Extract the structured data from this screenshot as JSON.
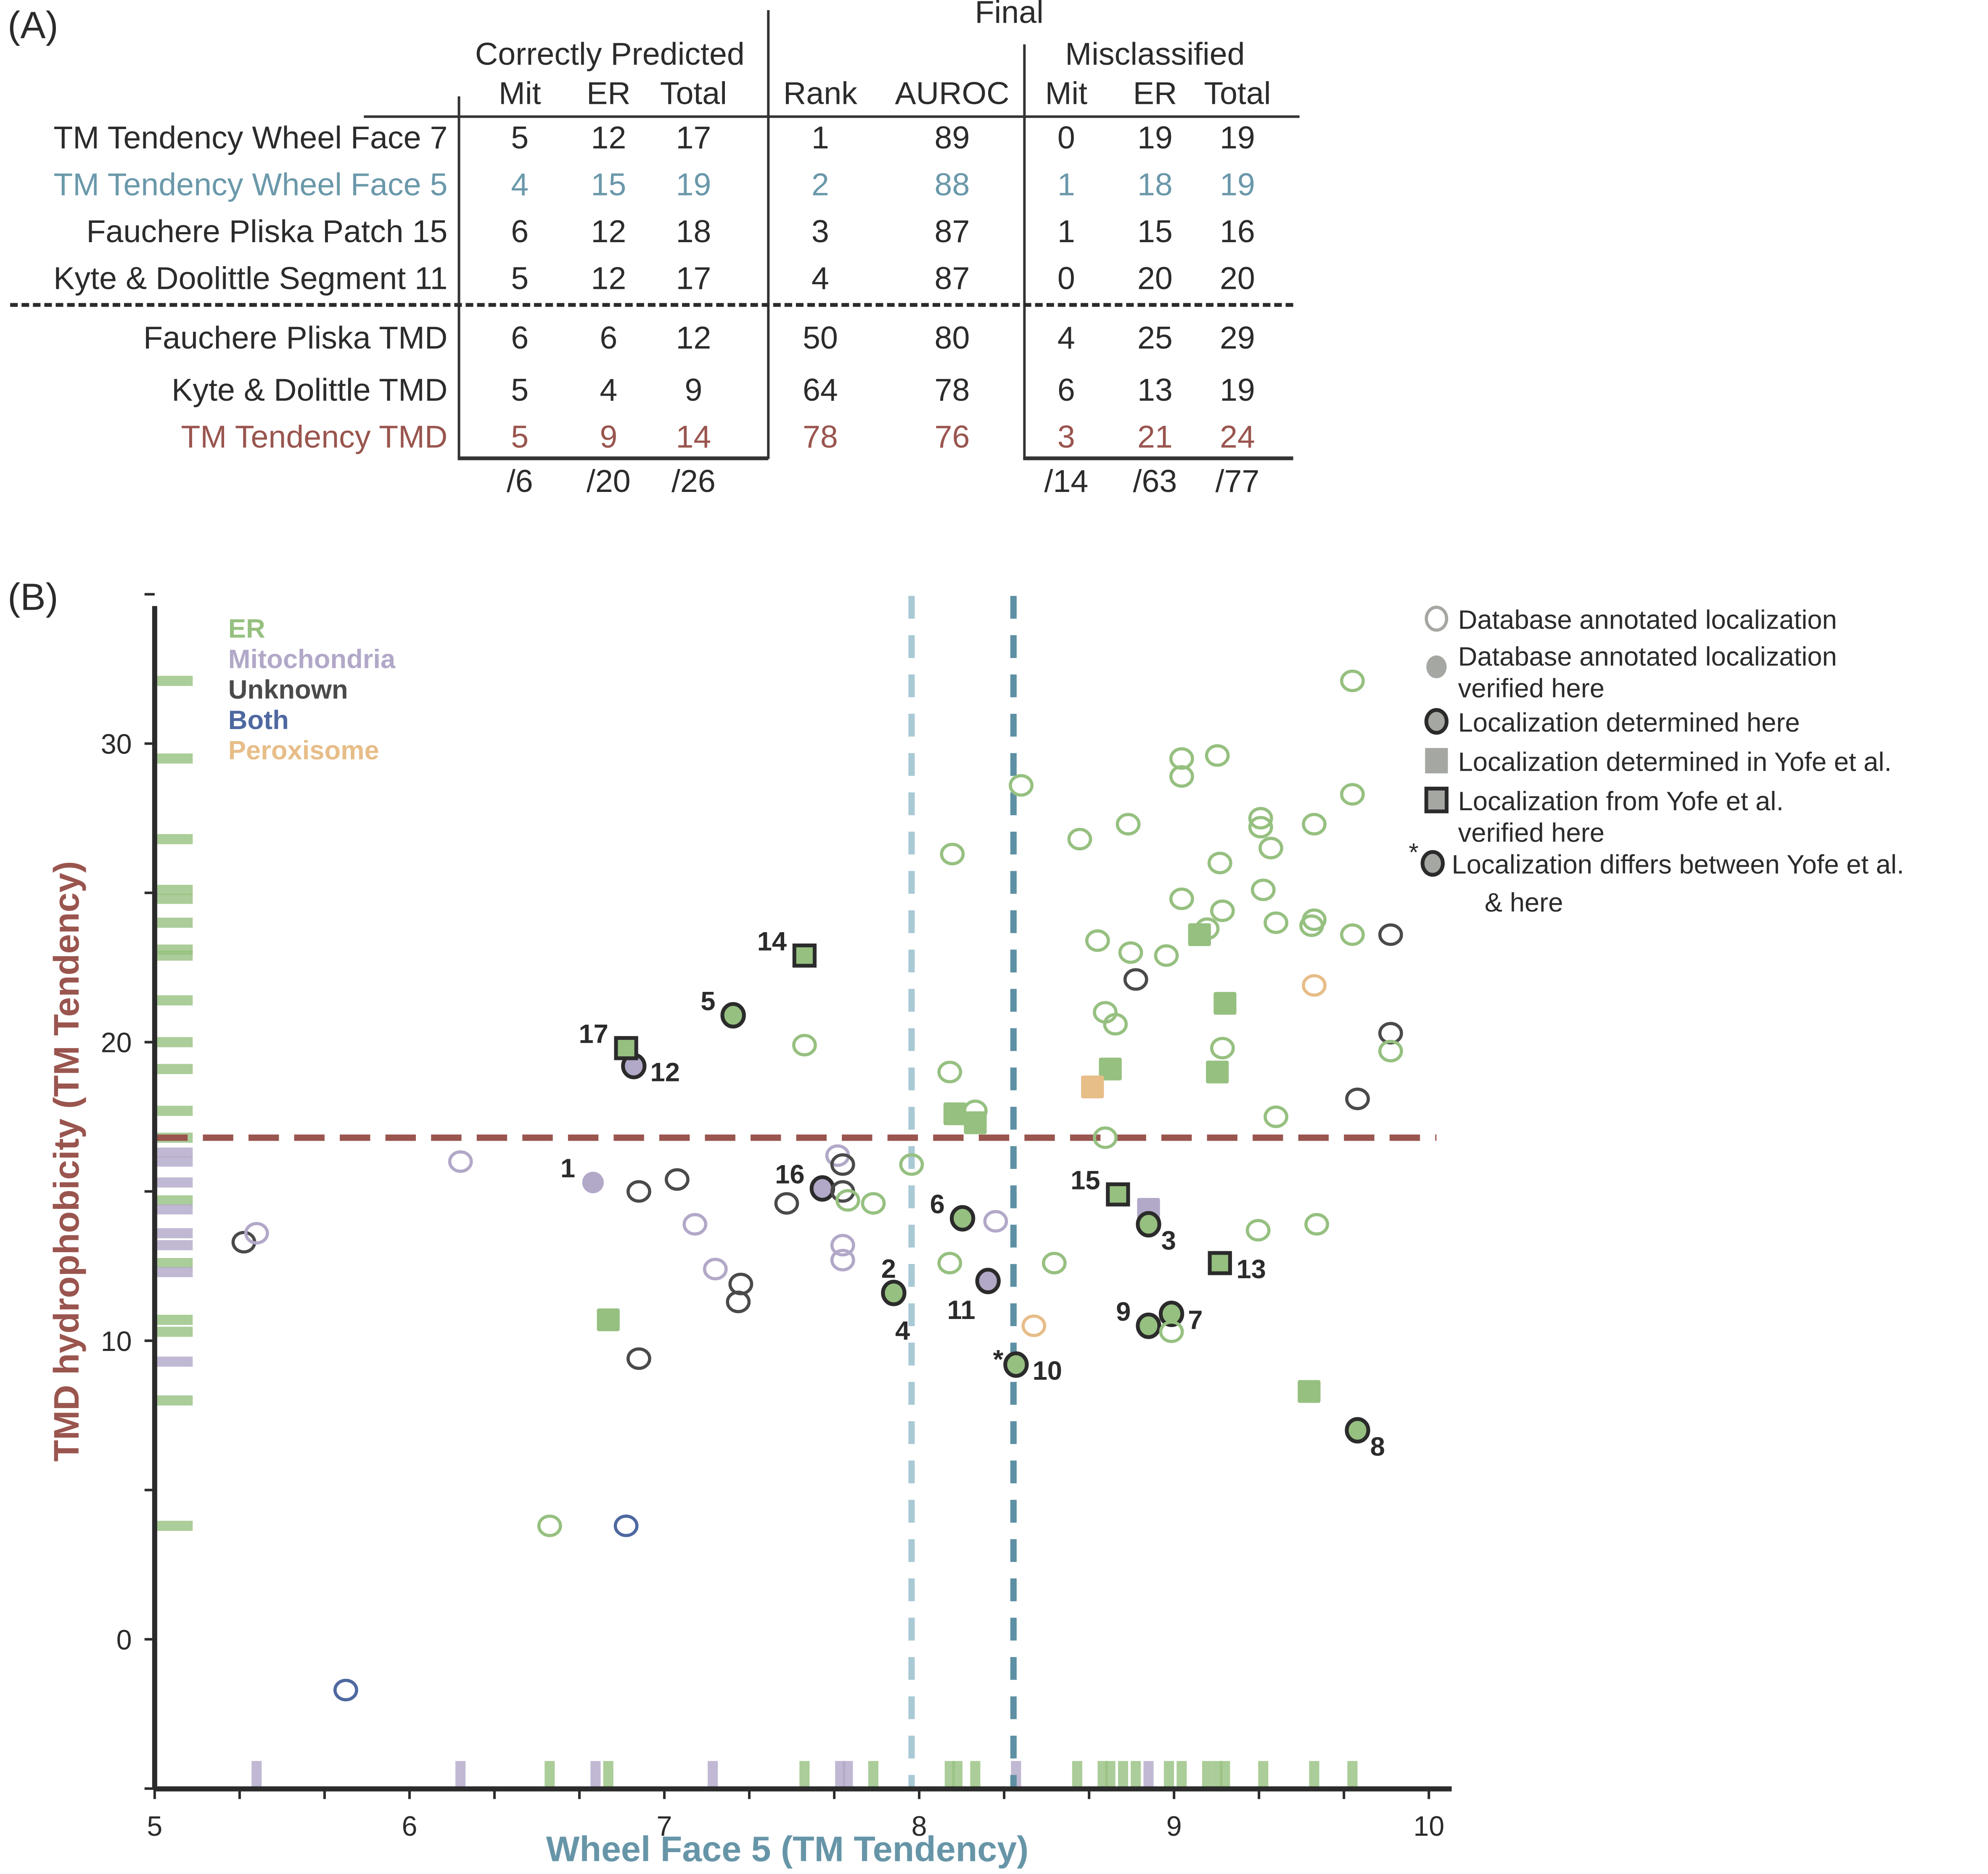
{
  "panel_a": {
    "label": "(A)",
    "group_headers": {
      "correct": "Correctly Predicted",
      "final": "Final",
      "misclassified": "Misclassified"
    },
    "columns": [
      "Mit",
      "ER",
      "Total",
      "Rank",
      "AUROC",
      "Mit",
      "ER",
      "Total"
    ],
    "rows": [
      {
        "name": "TM Tendency Wheel Face 7",
        "color": "#2b2b2b",
        "values": [
          "5",
          "12",
          "17",
          "1",
          "89",
          "0",
          "19",
          "19"
        ]
      },
      {
        "name": "TM Tendency Wheel Face 5",
        "color": "#6a98aa",
        "values": [
          "4",
          "15",
          "19",
          "2",
          "88",
          "1",
          "18",
          "19"
        ]
      },
      {
        "name": "Fauchere Pliska Patch 15",
        "color": "#2b2b2b",
        "values": [
          "6",
          "12",
          "18",
          "3",
          "87",
          "1",
          "15",
          "16"
        ]
      },
      {
        "name": "Kyte & Doolittle Segment 11",
        "color": "#2b2b2b",
        "values": [
          "5",
          "12",
          "17",
          "4",
          "87",
          "0",
          "20",
          "20"
        ]
      },
      {
        "name": "Fauchere Pliska TMD",
        "color": "#2b2b2b",
        "values": [
          "6",
          "6",
          "12",
          "50",
          "80",
          "4",
          "25",
          "29"
        ]
      },
      {
        "name": "Kyte & Dolittle TMD",
        "color": "#2b2b2b",
        "values": [
          "5",
          "4",
          "9",
          "64",
          "78",
          "6",
          "13",
          "19"
        ]
      },
      {
        "name": "TM Tendency TMD",
        "color": "#99554e",
        "values": [
          "5",
          "9",
          "14",
          "78",
          "76",
          "3",
          "21",
          "24"
        ]
      }
    ],
    "totals": {
      "correct": [
        "/6",
        "/20",
        "/26"
      ],
      "misclassified": [
        "/14",
        "/63",
        "/77"
      ]
    }
  },
  "chart_data": {
    "type": "scatter",
    "panel_label": "(B)",
    "title": "",
    "xlabel": "Wheel Face 5 (TM Tendency)",
    "ylabel": "TMD hydrophobicity (TM Tendency)",
    "xlim": [
      5,
      10.1
    ],
    "ylim": [
      -5,
      36
    ],
    "xticks": [
      5,
      6,
      7,
      8,
      9,
      10
    ],
    "yticks": [
      0,
      10,
      20,
      30
    ],
    "grid": false,
    "colors": {
      "ER": "#96c080",
      "Mitochondria": "#b2a8c8",
      "Unknown": "#4a4a4a",
      "Both": "#4e68a0",
      "Peroxisome": "#e7bd88",
      "xlabel": "#6795a8",
      "ylabel": "#99554e",
      "threshold_wf5_light": "#a9c9d4",
      "threshold_wf5_dark": "#5e90a3",
      "threshold_tmd": "#99554e"
    },
    "class_legend": [
      "ER",
      "Mitochondria",
      "Unknown",
      "Both",
      "Peroxisome"
    ],
    "marker_legend": [
      {
        "marker": "open-circle",
        "label": "Database annotated localization"
      },
      {
        "marker": "filled-circle",
        "label": "Database annotated localization verified here"
      },
      {
        "marker": "outlined-filled-circle",
        "label": "Localization determined here"
      },
      {
        "marker": "filled-square",
        "label": "Localization determined in Yofe et al."
      },
      {
        "marker": "outlined-filled-square",
        "label": "Localization from Yofe et al. verified here"
      },
      {
        "marker": "asterisk-outlined-circle",
        "label": "Localization differs between Yofe et al. & here"
      }
    ],
    "thresholds": {
      "x_light": 7.97,
      "x_dark": 8.37,
      "y": 16.8
    },
    "points": [
      {
        "x": 5.35,
        "y": 13.3,
        "cls": "Unknown",
        "m": "open"
      },
      {
        "x": 5.4,
        "y": 13.6,
        "cls": "Mitochondria",
        "m": "open"
      },
      {
        "x": 6.2,
        "y": 16.0,
        "cls": "Mitochondria",
        "m": "open"
      },
      {
        "x": 5.75,
        "y": -1.7,
        "cls": "Both",
        "m": "open"
      },
      {
        "x": 6.55,
        "y": 3.8,
        "cls": "ER",
        "m": "open"
      },
      {
        "x": 6.85,
        "y": 3.8,
        "cls": "Both",
        "m": "open"
      },
      {
        "x": 6.72,
        "y": 15.3,
        "cls": "Mitochondria",
        "m": "filled",
        "label": "1",
        "lpos": "left"
      },
      {
        "x": 6.9,
        "y": 15.0,
        "cls": "Unknown",
        "m": "open"
      },
      {
        "x": 7.05,
        "y": 15.4,
        "cls": "Unknown",
        "m": "open"
      },
      {
        "x": 7.12,
        "y": 13.9,
        "cls": "Mitochondria",
        "m": "open"
      },
      {
        "x": 7.2,
        "y": 12.4,
        "cls": "Mitochondria",
        "m": "open"
      },
      {
        "x": 7.3,
        "y": 11.9,
        "cls": "Unknown",
        "m": "open"
      },
      {
        "x": 7.29,
        "y": 11.3,
        "cls": "Unknown",
        "m": "open"
      },
      {
        "x": 6.78,
        "y": 10.7,
        "cls": "ER",
        "m": "square"
      },
      {
        "x": 6.9,
        "y": 9.4,
        "cls": "Unknown",
        "m": "open"
      },
      {
        "x": 6.88,
        "y": 19.2,
        "cls": "Mitochondria",
        "m": "determined",
        "label": "12",
        "lpos": "right"
      },
      {
        "x": 6.85,
        "y": 19.8,
        "cls": "ER",
        "m": "square-verified",
        "label": "17",
        "lpos": "left"
      },
      {
        "x": 7.27,
        "y": 20.9,
        "cls": "ER",
        "m": "determined",
        "label": "5",
        "lpos": "left"
      },
      {
        "x": 7.55,
        "y": 22.9,
        "cls": "ER",
        "m": "square-verified",
        "label": "14",
        "lpos": "left"
      },
      {
        "x": 7.55,
        "y": 19.9,
        "cls": "ER",
        "m": "open"
      },
      {
        "x": 7.48,
        "y": 14.6,
        "cls": "Unknown",
        "m": "open"
      },
      {
        "x": 7.62,
        "y": 15.1,
        "cls": "Mitochondria",
        "m": "determined",
        "label": "16",
        "lpos": "left"
      },
      {
        "x": 7.68,
        "y": 16.2,
        "cls": "Mitochondria",
        "m": "open"
      },
      {
        "x": 7.7,
        "y": 15.9,
        "cls": "Unknown",
        "m": "open"
      },
      {
        "x": 7.7,
        "y": 15.0,
        "cls": "Unknown",
        "m": "open"
      },
      {
        "x": 7.72,
        "y": 14.7,
        "cls": "ER",
        "m": "open"
      },
      {
        "x": 7.82,
        "y": 14.6,
        "cls": "ER",
        "m": "open"
      },
      {
        "x": 7.7,
        "y": 13.2,
        "cls": "Mitochondria",
        "m": "open"
      },
      {
        "x": 7.7,
        "y": 12.7,
        "cls": "Mitochondria",
        "m": "open"
      },
      {
        "x": 7.9,
        "y": 11.6,
        "cls": "ER",
        "m": "determined",
        "label": "2",
        "lpos": "above",
        "label2": "4"
      },
      {
        "x": 7.97,
        "y": 15.9,
        "cls": "ER",
        "m": "open"
      },
      {
        "x": 8.12,
        "y": 19.0,
        "cls": "ER",
        "m": "open"
      },
      {
        "x": 8.13,
        "y": 26.3,
        "cls": "ER",
        "m": "open"
      },
      {
        "x": 8.14,
        "y": 17.6,
        "cls": "ER",
        "m": "square"
      },
      {
        "x": 8.22,
        "y": 17.7,
        "cls": "ER",
        "m": "open"
      },
      {
        "x": 8.22,
        "y": 17.3,
        "cls": "ER",
        "m": "square"
      },
      {
        "x": 8.12,
        "y": 12.6,
        "cls": "ER",
        "m": "open"
      },
      {
        "x": 8.17,
        "y": 14.1,
        "cls": "ER",
        "m": "determined",
        "label": "6",
        "lpos": "left"
      },
      {
        "x": 8.3,
        "y": 14.0,
        "cls": "Mitochondria",
        "m": "open"
      },
      {
        "x": 8.27,
        "y": 12.0,
        "cls": "Mitochondria",
        "m": "determined",
        "label": "11",
        "lpos": "below-left"
      },
      {
        "x": 8.38,
        "y": 9.2,
        "cls": "ER",
        "m": "determined",
        "label": "10",
        "lpos": "right",
        "asterisk": true
      },
      {
        "x": 8.45,
        "y": 10.5,
        "cls": "Peroxisome",
        "m": "open"
      },
      {
        "x": 8.4,
        "y": 28.6,
        "cls": "ER",
        "m": "open"
      },
      {
        "x": 8.53,
        "y": 12.6,
        "cls": "ER",
        "m": "open"
      },
      {
        "x": 8.63,
        "y": 26.8,
        "cls": "ER",
        "m": "open"
      },
      {
        "x": 8.7,
        "y": 23.4,
        "cls": "ER",
        "m": "open"
      },
      {
        "x": 8.73,
        "y": 21.0,
        "cls": "ER",
        "m": "open"
      },
      {
        "x": 8.77,
        "y": 20.6,
        "cls": "ER",
        "m": "open"
      },
      {
        "x": 8.75,
        "y": 19.1,
        "cls": "ER",
        "m": "square"
      },
      {
        "x": 8.68,
        "y": 18.5,
        "cls": "Peroxisome",
        "m": "square"
      },
      {
        "x": 8.73,
        "y": 16.8,
        "cls": "ER",
        "m": "open"
      },
      {
        "x": 8.82,
        "y": 27.3,
        "cls": "ER",
        "m": "open"
      },
      {
        "x": 8.83,
        "y": 23.0,
        "cls": "ER",
        "m": "open"
      },
      {
        "x": 8.85,
        "y": 22.1,
        "cls": "Unknown",
        "m": "open"
      },
      {
        "x": 8.97,
        "y": 22.9,
        "cls": "ER",
        "m": "open"
      },
      {
        "x": 8.78,
        "y": 14.9,
        "cls": "ER",
        "m": "square-verified",
        "label": "15",
        "lpos": "left"
      },
      {
        "x": 8.9,
        "y": 14.4,
        "cls": "Mitochondria",
        "m": "square"
      },
      {
        "x": 8.9,
        "y": 13.9,
        "cls": "ER",
        "m": "determined",
        "label": "3",
        "lpos": "below-right"
      },
      {
        "x": 8.9,
        "y": 10.5,
        "cls": "ER",
        "m": "determined",
        "label": "9",
        "lpos": "left"
      },
      {
        "x": 8.99,
        "y": 10.9,
        "cls": "ER",
        "m": "determined",
        "label": "7",
        "lpos": "right"
      },
      {
        "x": 8.99,
        "y": 10.3,
        "cls": "ER",
        "m": "open"
      },
      {
        "x": 9.03,
        "y": 29.5,
        "cls": "ER",
        "m": "open"
      },
      {
        "x": 9.03,
        "y": 28.9,
        "cls": "ER",
        "m": "open"
      },
      {
        "x": 9.03,
        "y": 24.8,
        "cls": "ER",
        "m": "open"
      },
      {
        "x": 9.1,
        "y": 23.6,
        "cls": "ER",
        "m": "square"
      },
      {
        "x": 9.13,
        "y": 23.8,
        "cls": "ER",
        "m": "open"
      },
      {
        "x": 9.17,
        "y": 29.6,
        "cls": "ER",
        "m": "open"
      },
      {
        "x": 9.18,
        "y": 26.0,
        "cls": "ER",
        "m": "open"
      },
      {
        "x": 9.19,
        "y": 24.4,
        "cls": "ER",
        "m": "open"
      },
      {
        "x": 9.2,
        "y": 21.3,
        "cls": "ER",
        "m": "square"
      },
      {
        "x": 9.19,
        "y": 19.8,
        "cls": "ER",
        "m": "open"
      },
      {
        "x": 9.17,
        "y": 19.0,
        "cls": "ER",
        "m": "square"
      },
      {
        "x": 9.18,
        "y": 12.6,
        "cls": "ER",
        "m": "square-verified",
        "label": "13",
        "lpos": "right"
      },
      {
        "x": 9.34,
        "y": 27.5,
        "cls": "ER",
        "m": "open"
      },
      {
        "x": 9.34,
        "y": 27.2,
        "cls": "ER",
        "m": "open"
      },
      {
        "x": 9.38,
        "y": 26.5,
        "cls": "ER",
        "m": "open"
      },
      {
        "x": 9.35,
        "y": 25.1,
        "cls": "ER",
        "m": "open"
      },
      {
        "x": 9.4,
        "y": 24.0,
        "cls": "ER",
        "m": "open"
      },
      {
        "x": 9.4,
        "y": 17.5,
        "cls": "ER",
        "m": "open"
      },
      {
        "x": 9.33,
        "y": 13.7,
        "cls": "ER",
        "m": "open"
      },
      {
        "x": 9.55,
        "y": 27.3,
        "cls": "ER",
        "m": "open"
      },
      {
        "x": 9.55,
        "y": 24.1,
        "cls": "ER",
        "m": "open"
      },
      {
        "x": 9.54,
        "y": 23.9,
        "cls": "ER",
        "m": "open"
      },
      {
        "x": 9.55,
        "y": 21.9,
        "cls": "Peroxisome",
        "m": "open"
      },
      {
        "x": 9.56,
        "y": 13.9,
        "cls": "ER",
        "m": "open"
      },
      {
        "x": 9.53,
        "y": 8.3,
        "cls": "ER",
        "m": "square"
      },
      {
        "x": 9.7,
        "y": 32.1,
        "cls": "ER",
        "m": "open"
      },
      {
        "x": 9.7,
        "y": 28.3,
        "cls": "ER",
        "m": "open"
      },
      {
        "x": 9.7,
        "y": 23.6,
        "cls": "ER",
        "m": "open"
      },
      {
        "x": 9.72,
        "y": 18.1,
        "cls": "Unknown",
        "m": "open"
      },
      {
        "x": 9.72,
        "y": 7.0,
        "cls": "ER",
        "m": "determined",
        "label": "8",
        "lpos": "below-right"
      },
      {
        "x": 9.85,
        "y": 23.6,
        "cls": "Unknown",
        "m": "open"
      },
      {
        "x": 9.85,
        "y": 20.3,
        "cls": "Unknown",
        "m": "open"
      },
      {
        "x": 9.85,
        "y": 19.7,
        "cls": "ER",
        "m": "open"
      }
    ],
    "rug_x": [
      {
        "x": 5.4,
        "cls": "Mitochondria"
      },
      {
        "x": 6.2,
        "cls": "Mitochondria"
      },
      {
        "x": 6.55,
        "cls": "ER"
      },
      {
        "x": 6.73,
        "cls": "Mitochondria"
      },
      {
        "x": 6.78,
        "cls": "ER"
      },
      {
        "x": 7.19,
        "cls": "Mitochondria"
      },
      {
        "x": 7.55,
        "cls": "ER"
      },
      {
        "x": 7.69,
        "cls": "Mitochondria"
      },
      {
        "x": 7.72,
        "cls": "Mitochondria"
      },
      {
        "x": 7.82,
        "cls": "ER"
      },
      {
        "x": 8.12,
        "cls": "ER"
      },
      {
        "x": 8.15,
        "cls": "ER"
      },
      {
        "x": 8.22,
        "cls": "ER"
      },
      {
        "x": 8.38,
        "cls": "Mitochondria"
      },
      {
        "x": 8.62,
        "cls": "ER"
      },
      {
        "x": 8.72,
        "cls": "ER"
      },
      {
        "x": 8.75,
        "cls": "ER"
      },
      {
        "x": 8.8,
        "cls": "ER"
      },
      {
        "x": 8.85,
        "cls": "ER"
      },
      {
        "x": 8.9,
        "cls": "Mitochondria"
      },
      {
        "x": 8.98,
        "cls": "ER"
      },
      {
        "x": 9.03,
        "cls": "ER"
      },
      {
        "x": 9.13,
        "cls": "ER"
      },
      {
        "x": 9.17,
        "cls": "ER"
      },
      {
        "x": 9.2,
        "cls": "ER"
      },
      {
        "x": 9.35,
        "cls": "ER"
      },
      {
        "x": 9.55,
        "cls": "ER"
      },
      {
        "x": 9.7,
        "cls": "ER"
      }
    ],
    "rug_y": [
      {
        "y": 32.1,
        "cls": "ER"
      },
      {
        "y": 29.5,
        "cls": "ER"
      },
      {
        "y": 26.8,
        "cls": "ER"
      },
      {
        "y": 25.1,
        "cls": "ER"
      },
      {
        "y": 24.8,
        "cls": "ER"
      },
      {
        "y": 24.0,
        "cls": "ER"
      },
      {
        "y": 23.1,
        "cls": "ER"
      },
      {
        "y": 22.9,
        "cls": "ER"
      },
      {
        "y": 21.4,
        "cls": "ER"
      },
      {
        "y": 20.0,
        "cls": "ER"
      },
      {
        "y": 19.1,
        "cls": "ER"
      },
      {
        "y": 17.7,
        "cls": "ER"
      },
      {
        "y": 16.8,
        "cls": "ER"
      },
      {
        "y": 16.3,
        "cls": "Mitochondria"
      },
      {
        "y": 16.0,
        "cls": "Mitochondria"
      },
      {
        "y": 15.3,
        "cls": "Mitochondria"
      },
      {
        "y": 14.7,
        "cls": "ER"
      },
      {
        "y": 14.4,
        "cls": "Mitochondria"
      },
      {
        "y": 13.6,
        "cls": "Mitochondria"
      },
      {
        "y": 13.2,
        "cls": "Mitochondria"
      },
      {
        "y": 12.6,
        "cls": "ER"
      },
      {
        "y": 12.3,
        "cls": "Mitochondria"
      },
      {
        "y": 10.7,
        "cls": "ER"
      },
      {
        "y": 10.3,
        "cls": "ER"
      },
      {
        "y": 9.3,
        "cls": "Mitochondria"
      },
      {
        "y": 8.0,
        "cls": "ER"
      },
      {
        "y": 3.8,
        "cls": "ER"
      }
    ]
  }
}
